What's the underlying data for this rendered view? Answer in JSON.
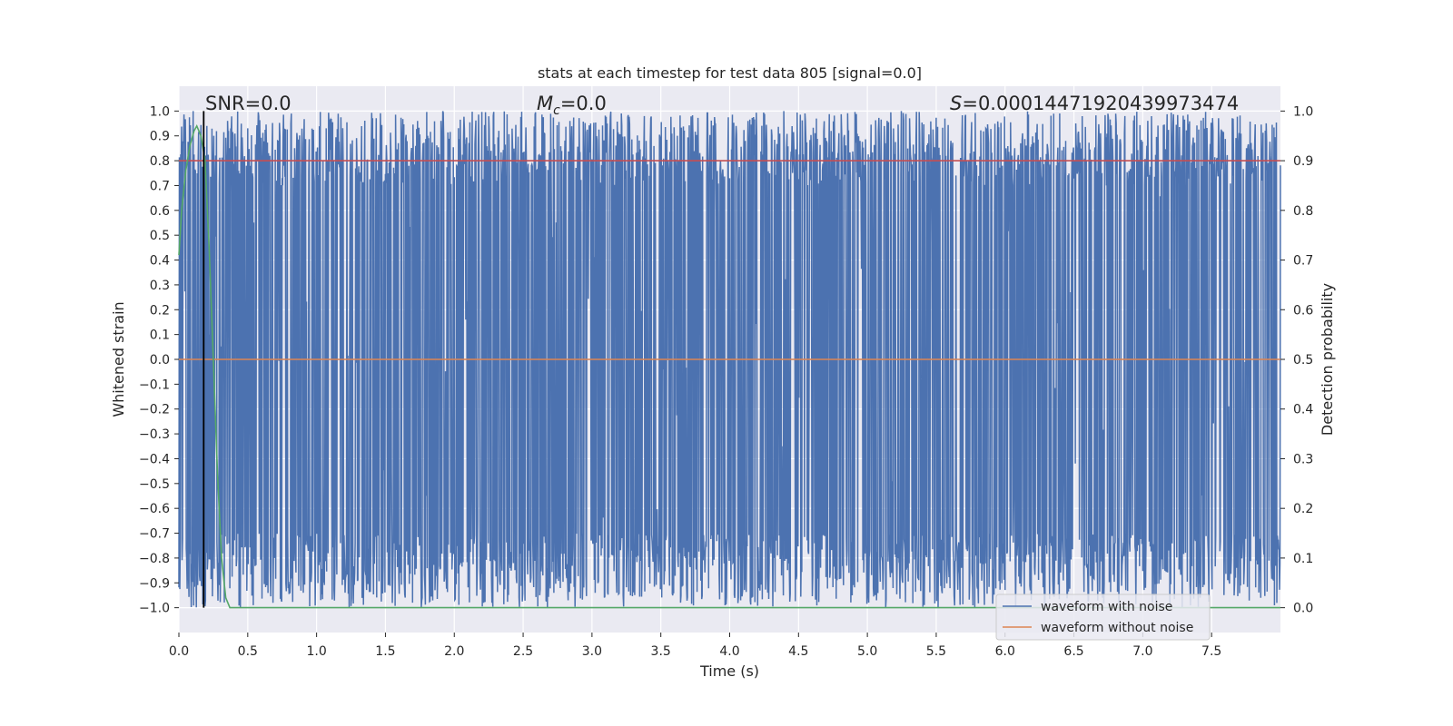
{
  "chart_data": {
    "type": "line",
    "title": "stats at each timestep for test data 805 [signal=0.0]",
    "xlabel": "Time (s)",
    "ylabel_left": "Whitened strain",
    "ylabel_right": "Detection probability",
    "xlim": [
      0.0,
      8.0
    ],
    "ylim_left": [
      -1.1,
      1.1
    ],
    "ylim_right": [
      -0.05,
      1.05
    ],
    "x_ticks": [
      0.0,
      0.5,
      1.0,
      1.5,
      2.0,
      2.5,
      3.0,
      3.5,
      4.0,
      4.5,
      5.0,
      5.5,
      6.0,
      6.5,
      7.0,
      7.5
    ],
    "x_tick_labels": [
      "0.0",
      "0.5",
      "1.0",
      "1.5",
      "2.0",
      "2.5",
      "3.0",
      "3.5",
      "4.0",
      "4.5",
      "5.0",
      "5.5",
      "6.0",
      "6.5",
      "7.0",
      "7.5"
    ],
    "y_left_ticks": [
      1.0,
      0.9,
      0.8,
      0.7,
      0.6,
      0.5,
      0.4,
      0.3,
      0.2,
      0.1,
      0.0,
      -0.1,
      -0.2,
      -0.3,
      -0.4,
      -0.5,
      -0.6,
      -0.7,
      -0.8,
      -0.9,
      -1.0
    ],
    "y_left_tick_labels": [
      "1.0",
      "0.9",
      "0.8",
      "0.7",
      "0.6",
      "0.5",
      "0.4",
      "0.3",
      "0.2",
      "0.1",
      "0.0",
      "−0.1",
      "−0.2",
      "−0.3",
      "−0.4",
      "−0.5",
      "−0.6",
      "−0.7",
      "−0.8",
      "−0.9",
      "−1.0"
    ],
    "y_right_ticks": [
      1.0,
      0.9,
      0.8,
      0.7,
      0.6,
      0.5,
      0.4,
      0.3,
      0.2,
      0.1,
      0.0
    ],
    "y_right_tick_labels": [
      "1.0",
      "0.9",
      "0.8",
      "0.7",
      "0.6",
      "0.5",
      "0.4",
      "0.3",
      "0.2",
      "0.1",
      "0.0"
    ],
    "grid": true,
    "annotations": {
      "snr": "SNR=0.0",
      "mc_symbol": "M",
      "mc_sub": "c",
      "mc_value": "=0.0",
      "s_symbol": "S",
      "s_value": "=0.00014471920439973474"
    },
    "series": [
      {
        "name": "waveform with noise",
        "axis": "left",
        "color": "#4c72b0",
        "description": "dense whitened strain noise oscillating between roughly -1.0 and 1.0 across the whole 0-8 s range"
      },
      {
        "name": "waveform without noise",
        "axis": "left",
        "color": "#dd8452",
        "x": [
          0.0,
          8.0
        ],
        "y": [
          0.0,
          0.0
        ]
      },
      {
        "axis": "right",
        "color": "#c44e52",
        "x": [
          0.0,
          8.0
        ],
        "y": [
          0.9,
          0.9
        ]
      },
      {
        "axis": "right",
        "color": "#55a868",
        "x": [
          0.0,
          0.02,
          0.05,
          0.08,
          0.11,
          0.13,
          0.16,
          0.19,
          0.22,
          0.25,
          0.28,
          0.31,
          0.34,
          0.37,
          0.5,
          1.0,
          2.0,
          4.0,
          6.0,
          8.0
        ],
        "y": [
          0.71,
          0.8,
          0.88,
          0.93,
          0.96,
          0.97,
          0.95,
          0.9,
          0.72,
          0.5,
          0.27,
          0.1,
          0.02,
          0.0,
          0.0,
          0.0,
          0.0,
          0.0,
          0.0,
          0.0
        ]
      },
      {
        "axis": "left",
        "color": "#000000",
        "type": "vline",
        "x": [
          0.18,
          0.18
        ],
        "y": [
          -1.0,
          1.0
        ]
      }
    ],
    "legend": {
      "position": "lower-right",
      "entries": [
        {
          "label": "waveform with noise",
          "color": "#4c72b0"
        },
        {
          "label": "waveform without noise",
          "color": "#dd8452"
        }
      ]
    },
    "colors": {
      "background": "#eaeaf2",
      "grid": "#ffffff",
      "noise": "#4c72b0",
      "clean": "#dd8452",
      "threshold": "#c44e52",
      "probability": "#55a868",
      "marker": "#000000"
    }
  }
}
